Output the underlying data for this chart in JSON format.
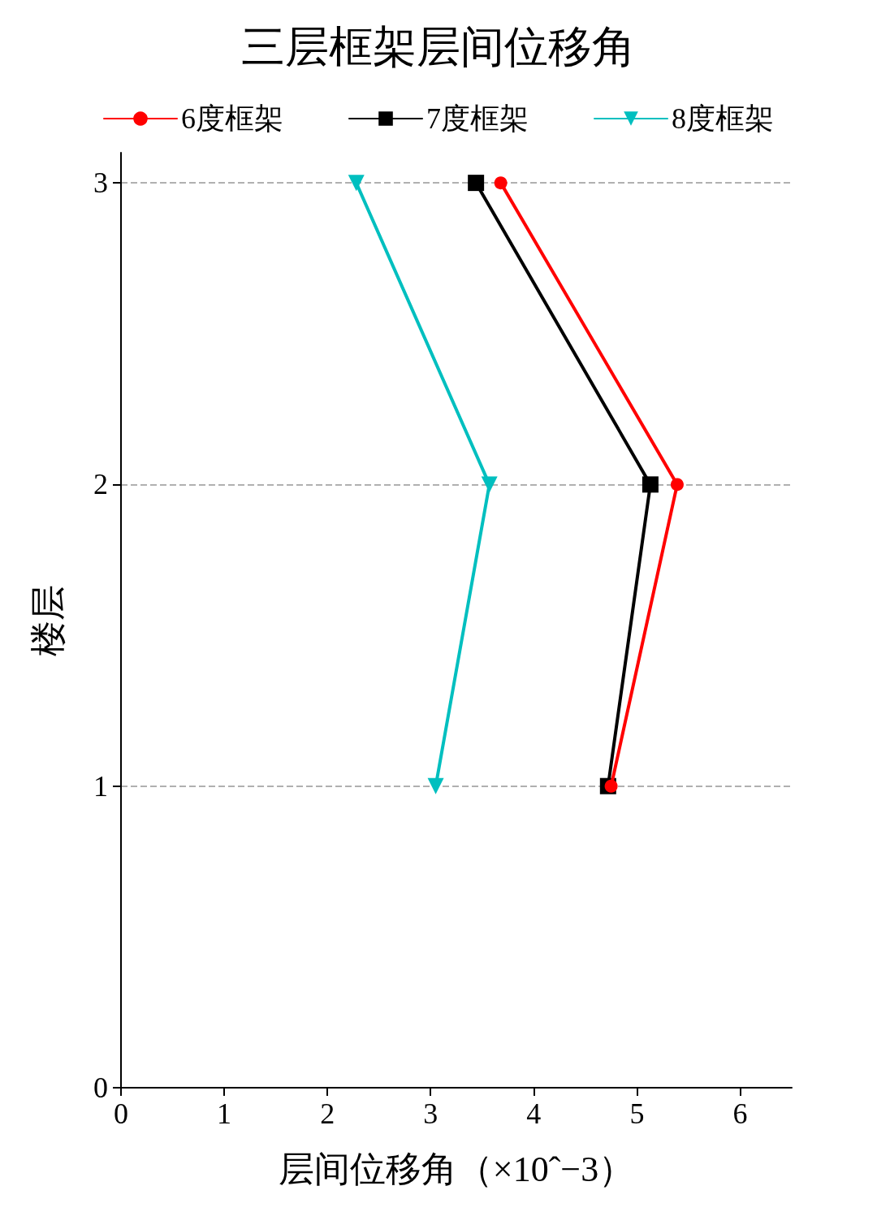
{
  "chart_data": {
    "type": "line",
    "title": "三层框架层间位移角",
    "xlabel": "层间位移角（×10ˆ−3）",
    "ylabel": "楼层",
    "xlim": [
      0,
      6.5
    ],
    "xticks": [
      0,
      1,
      2,
      3,
      4,
      5,
      6
    ],
    "ylim": [
      0,
      3.1
    ],
    "yticks": [
      0,
      1,
      2,
      3
    ],
    "grid": "y",
    "legend": "top",
    "series": [
      {
        "name": "6度框架",
        "color": "#ff0000",
        "marker": "circle",
        "x": [
          4.75,
          5.39,
          3.68
        ],
        "values": [
          1,
          2,
          3
        ]
      },
      {
        "name": "7度框架",
        "color": "#000000",
        "marker": "square",
        "x": [
          4.72,
          5.13,
          3.44
        ],
        "values": [
          1,
          2,
          3
        ]
      },
      {
        "name": "8度框架",
        "color": "#00bfbf",
        "marker": "triangle",
        "x": [
          3.05,
          3.57,
          2.28
        ],
        "values": [
          1,
          2,
          3
        ]
      }
    ]
  }
}
